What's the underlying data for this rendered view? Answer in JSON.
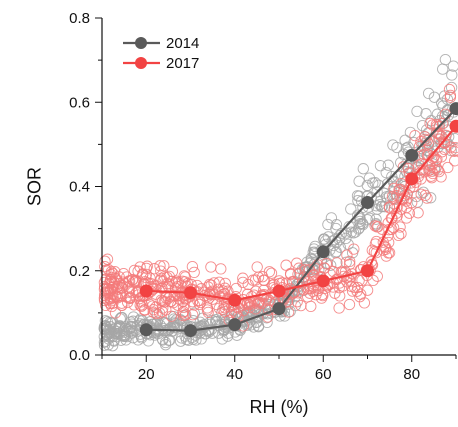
{
  "chart_data": {
    "type": "scatter",
    "xlabel": "RH (%)",
    "ylabel": "SOR",
    "xlim": [
      10,
      90
    ],
    "ylim": [
      0,
      0.8
    ],
    "x_ticks": [
      20,
      40,
      60,
      80
    ],
    "y_ticks": [
      0.0,
      0.2,
      0.4,
      0.6,
      0.8
    ],
    "y_tick_labels": [
      "0.0",
      "0.2",
      "0.4",
      "0.6",
      "0.8"
    ],
    "legend_position": "top-left",
    "grid": false,
    "series": [
      {
        "name": "2014",
        "color": "#5a5a5a",
        "scatter_color": "#a6a6a6",
        "x": [
          20,
          30,
          40,
          50,
          60,
          70,
          80,
          90
        ],
        "y": [
          0.06,
          0.058,
          0.072,
          0.11,
          0.245,
          0.362,
          0.474,
          0.585
        ]
      },
      {
        "name": "2017",
        "color": "#f24343",
        "scatter_color": "#f37a7a",
        "x": [
          20,
          30,
          40,
          50,
          60,
          70,
          80,
          90
        ],
        "y": [
          0.152,
          0.148,
          0.13,
          0.152,
          0.176,
          0.2,
          0.418,
          0.543
        ]
      }
    ]
  }
}
